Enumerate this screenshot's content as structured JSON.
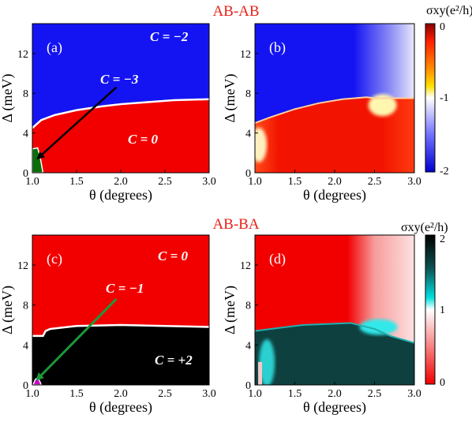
{
  "rows": [
    {
      "title": "AB-AB",
      "colorbar": {
        "label": "σxy(e²/h)",
        "ticks": [
          "0",
          "-1",
          "-2"
        ]
      }
    },
    {
      "title": "AB-BA",
      "colorbar": {
        "label": "σxy(e²/h)",
        "ticks": [
          "2",
          "1",
          "0"
        ]
      }
    }
  ],
  "colors": {
    "title": "#e8211a",
    "red": "#f20000",
    "blue": "#1414f2",
    "black": "#000000",
    "green": "#0a6e0a",
    "magenta": "#cc00cc",
    "arrow_black": "#000000",
    "arrow_green": "#1a9a3a",
    "cyan": "#00d7d7",
    "teal": "#0e4040"
  },
  "chart_data": [
    {
      "panel": "(a)",
      "type": "heatmap",
      "xlabel": "θ (degrees)",
      "ylabel": "Δ (meV)",
      "xlim": [
        1.0,
        3.0
      ],
      "ylim": [
        0,
        15
      ],
      "xticks": [
        "1.0",
        "1.5",
        "2.0",
        "2.5",
        "3.0"
      ],
      "yticks": [
        "0",
        "4",
        "8",
        "12"
      ],
      "boundary": {
        "x": [
          1.0,
          1.1,
          1.25,
          1.5,
          1.8,
          2.0,
          2.3,
          2.6,
          3.0
        ],
        "y": [
          4.5,
          5.3,
          5.8,
          6.3,
          6.7,
          6.9,
          7.1,
          7.3,
          7.4
        ]
      },
      "regions": [
        {
          "label": "C = −2",
          "color": "blue"
        },
        {
          "label": "C = 0",
          "color": "red"
        },
        {
          "label": "C = −3",
          "color": "green",
          "x": [
            1.0,
            1.1
          ],
          "y": [
            0,
            2.4
          ]
        }
      ]
    },
    {
      "panel": "(b)",
      "type": "heatmap",
      "xlabel": "θ (degrees)",
      "ylabel": "Δ (meV)",
      "xlim": [
        1.0,
        3.0
      ],
      "ylim": [
        0,
        15
      ],
      "xticks": [
        "1.0",
        "1.5",
        "2.0",
        "2.5",
        "3.0"
      ],
      "yticks": [
        "0",
        "4",
        "8",
        "12"
      ],
      "colorbar_range": [
        -2,
        0
      ],
      "boundary": {
        "x": [
          1.0,
          1.2,
          1.5,
          1.8,
          2.1,
          2.4,
          2.5
        ],
        "y": [
          5.0,
          5.6,
          6.4,
          7.0,
          7.4,
          7.6,
          7.5
        ]
      }
    },
    {
      "panel": "(c)",
      "type": "heatmap",
      "xlabel": "θ (degrees)",
      "ylabel": "Δ (meV)",
      "xlim": [
        1.0,
        3.0
      ],
      "ylim": [
        0,
        15
      ],
      "xticks": [
        "1.0",
        "1.5",
        "2.0",
        "2.5",
        "3.0"
      ],
      "yticks": [
        "0",
        "4",
        "8",
        "12"
      ],
      "boundary": {
        "x": [
          1.0,
          1.12,
          1.15,
          1.2,
          1.5,
          2.0,
          2.5,
          3.0
        ],
        "y": [
          4.9,
          4.9,
          5.4,
          5.6,
          5.9,
          6.0,
          5.9,
          5.8
        ]
      },
      "regions": [
        {
          "label": "C = 0",
          "color": "red"
        },
        {
          "label": "C = +2",
          "color": "black"
        },
        {
          "label": "C = −1",
          "color": "magenta",
          "x": [
            1.0,
            1.12
          ],
          "y": [
            0,
            0.9
          ]
        }
      ]
    },
    {
      "panel": "(d)",
      "type": "heatmap",
      "xlabel": "θ (degrees)",
      "ylabel": "Δ (meV)",
      "xlim": [
        1.0,
        3.0
      ],
      "ylim": [
        0,
        15
      ],
      "xticks": [
        "1.0",
        "1.5",
        "2.0",
        "2.5",
        "3.0"
      ],
      "yticks": [
        "0",
        "4",
        "8",
        "12"
      ],
      "colorbar_range": [
        0,
        2
      ],
      "boundary": {
        "x": [
          1.0,
          1.3,
          1.6,
          1.9,
          2.2,
          2.5,
          2.7,
          3.0
        ],
        "y": [
          5.4,
          5.7,
          6.0,
          6.1,
          6.2,
          5.6,
          4.9,
          4.2
        ]
      }
    }
  ]
}
